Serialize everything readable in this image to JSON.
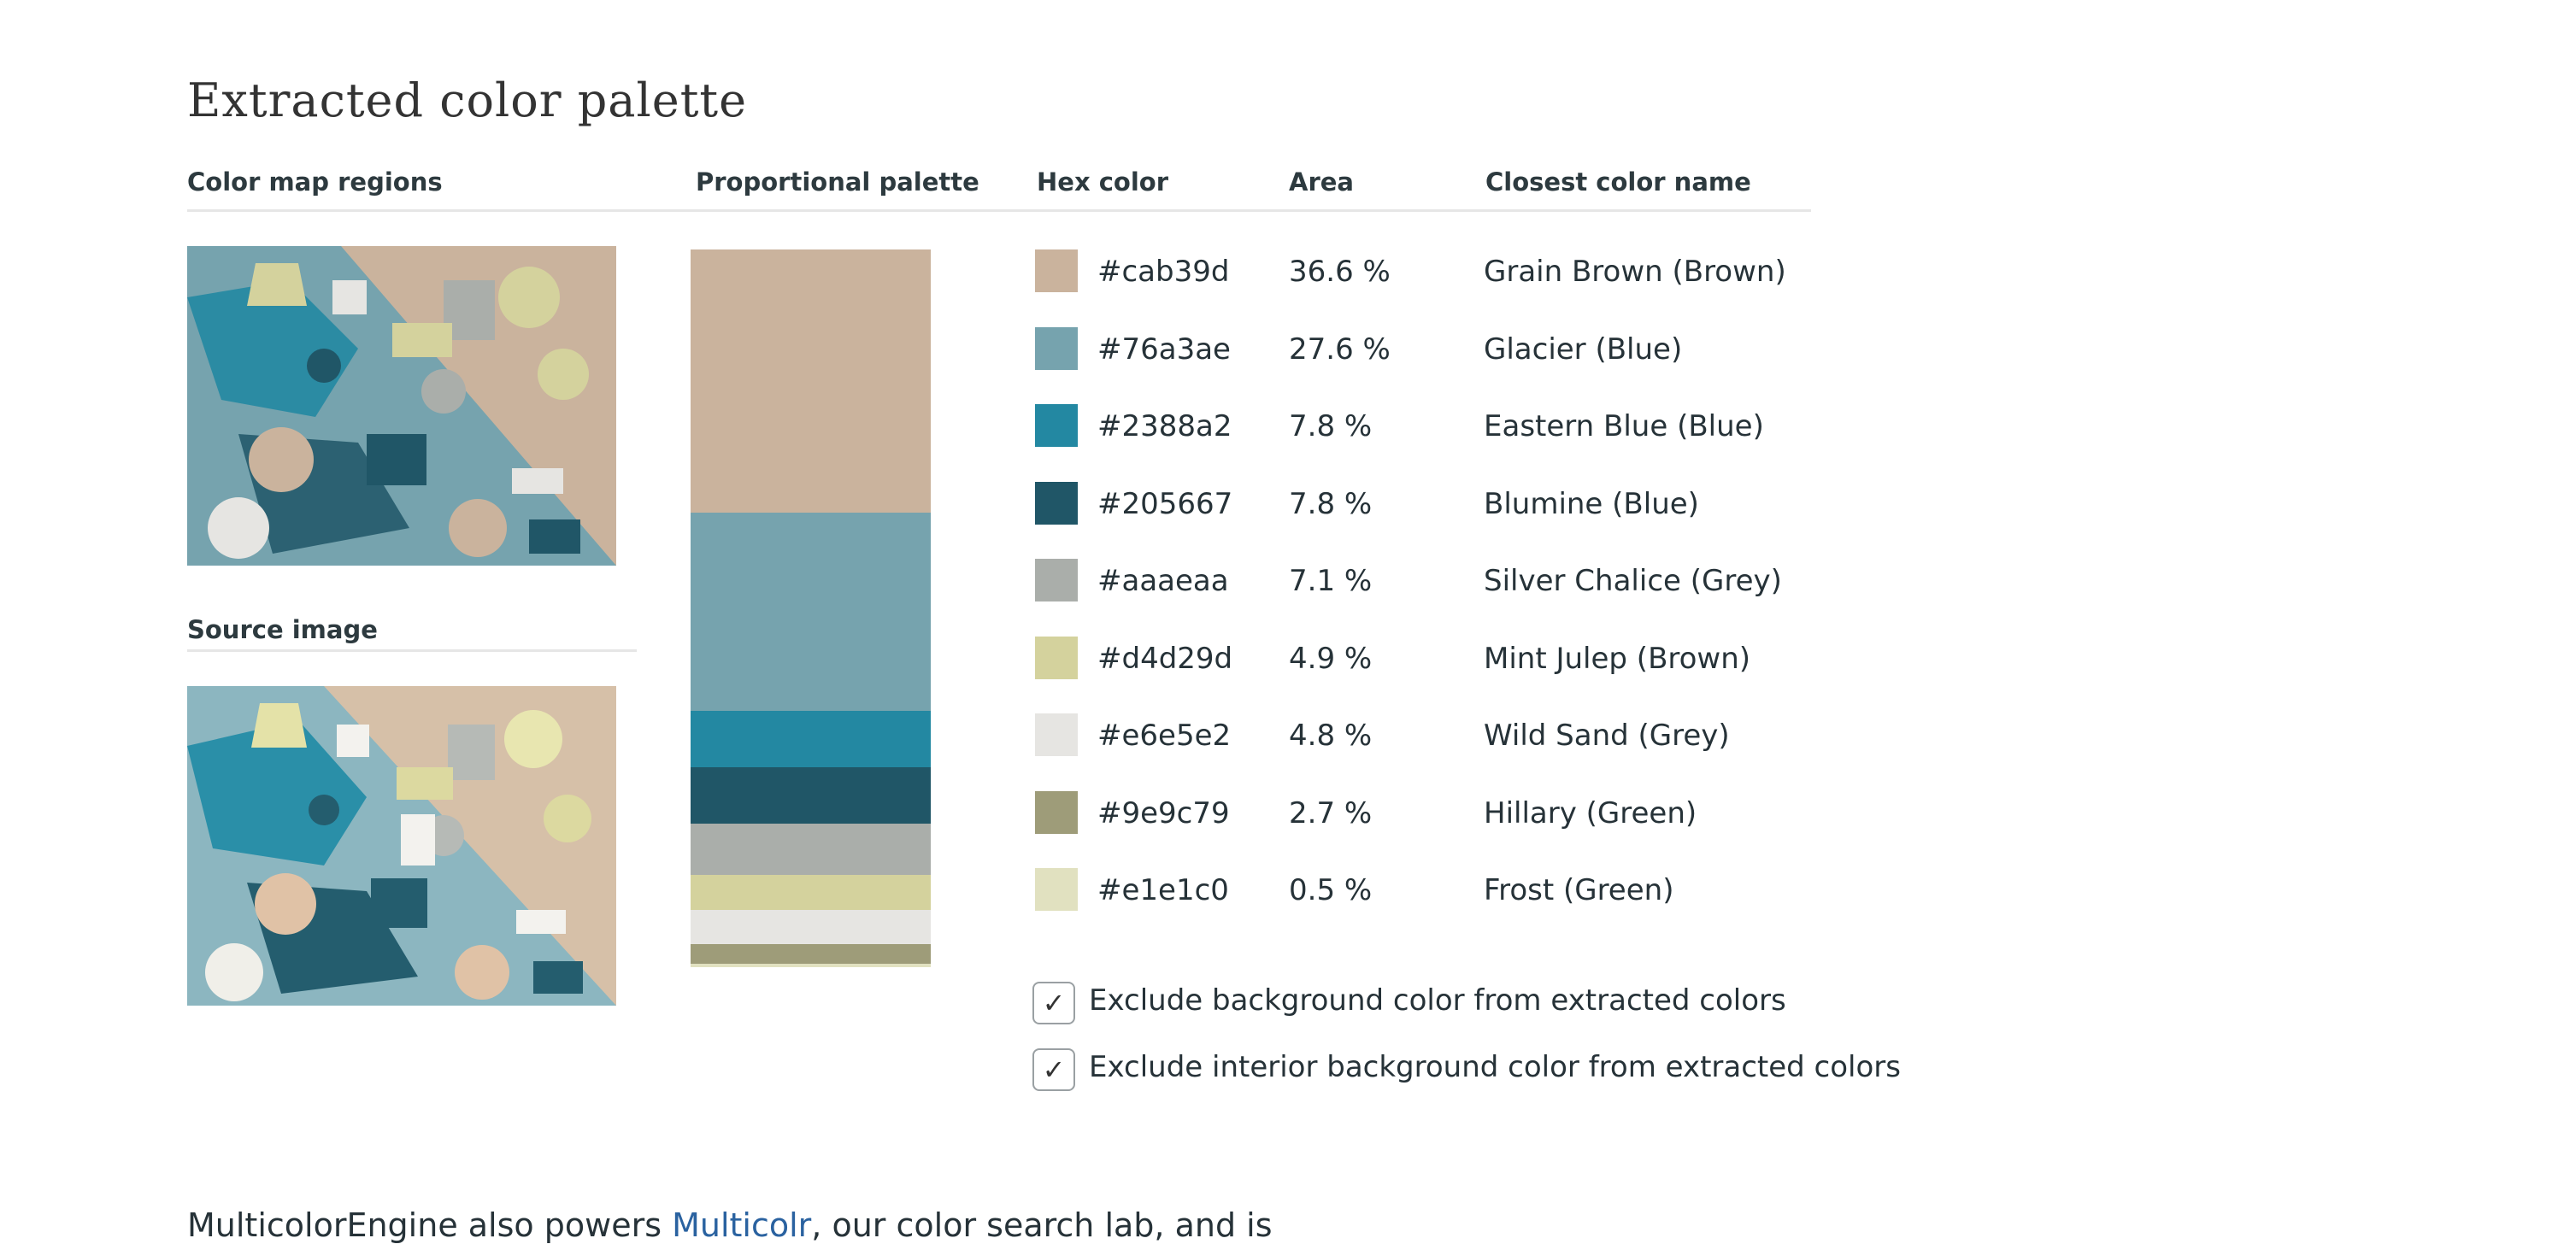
{
  "title": "Extracted color palette",
  "columns": {
    "color_map": "Color map regions",
    "proportional": "Proportional palette",
    "hex": "Hex color",
    "area": "Area",
    "closest": "Closest color name"
  },
  "source_label": "Source image",
  "palette": [
    {
      "hex": "#cab39d",
      "area": "36.6 %",
      "fraction": 0.366,
      "name": "Grain Brown (Brown)"
    },
    {
      "hex": "#76a3ae",
      "area": "27.6 %",
      "fraction": 0.276,
      "name": "Glacier (Blue)"
    },
    {
      "hex": "#2388a2",
      "area": "7.8 %",
      "fraction": 0.078,
      "name": "Eastern Blue (Blue)"
    },
    {
      "hex": "#205667",
      "area": "7.8 %",
      "fraction": 0.078,
      "name": "Blumine (Blue)"
    },
    {
      "hex": "#aaaeaa",
      "area": "7.1 %",
      "fraction": 0.071,
      "name": "Silver Chalice (Grey)"
    },
    {
      "hex": "#d4d29d",
      "area": "4.9 %",
      "fraction": 0.049,
      "name": "Mint Julep (Brown)"
    },
    {
      "hex": "#e6e5e2",
      "area": "4.8 %",
      "fraction": 0.048,
      "name": "Wild Sand (Grey)"
    },
    {
      "hex": "#9e9c79",
      "area": "2.7 %",
      "fraction": 0.027,
      "name": "Hillary (Green)"
    },
    {
      "hex": "#e1e1c0",
      "area": "0.5 %",
      "fraction": 0.005,
      "name": "Frost (Green)"
    }
  ],
  "options": [
    {
      "label": "Exclude background color from extracted colors",
      "checked": true,
      "mark": "✓"
    },
    {
      "label": "Exclude interior background color from extracted colors",
      "checked": true,
      "mark": "✓"
    }
  ],
  "footer": {
    "before": "MulticolorEngine also powers ",
    "link": "Multicolr",
    "after": ", our color search lab, and is"
  }
}
